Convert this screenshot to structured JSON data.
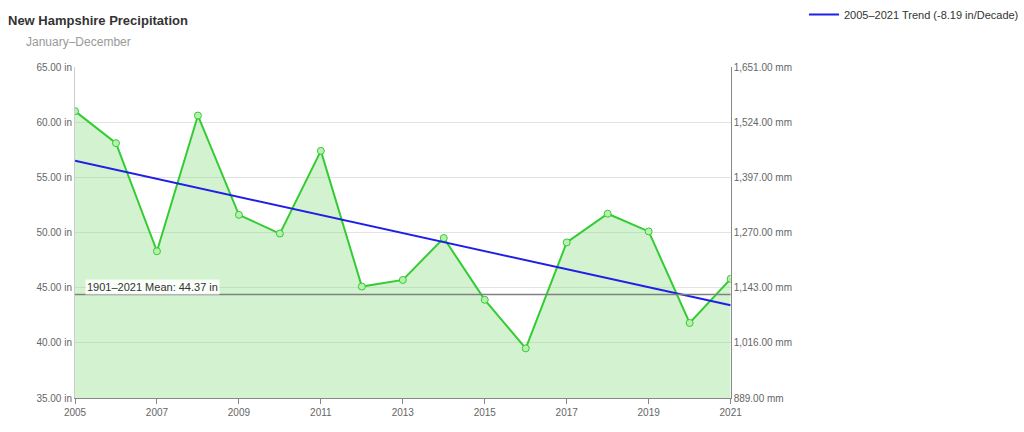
{
  "chart_data": {
    "type": "line",
    "title": "New Hampshire Precipitation",
    "subtitle": "January–December",
    "x": [
      2005,
      2006,
      2007,
      2008,
      2009,
      2010,
      2011,
      2012,
      2013,
      2014,
      2015,
      2016,
      2017,
      2018,
      2019,
      2020,
      2021
    ],
    "series": [
      {
        "type": "area",
        "color": "#33cc33",
        "marker": "circle",
        "values": [
          61.0,
          58.1,
          48.3,
          60.6,
          51.6,
          49.9,
          57.4,
          45.1,
          45.7,
          49.5,
          43.9,
          39.5,
          49.1,
          51.7,
          50.1,
          41.8,
          45.8
        ]
      },
      {
        "type": "line",
        "name": "2005–2021 Trend (-8.19 in/Decade)",
        "color": "#1f1fe6",
        "marker": "none",
        "x": [
          2005,
          2021
        ],
        "values": [
          56.5,
          43.4
        ]
      }
    ],
    "annotations": [
      {
        "text": "1901–2021 Mean: 44.37 in",
        "y": 44.37,
        "color": "#7f7f7f"
      }
    ],
    "xlim": [
      2005,
      2021
    ],
    "xticks": [
      2005,
      2007,
      2009,
      2011,
      2013,
      2015,
      2017,
      2019,
      2021
    ],
    "ylim": [
      35,
      65
    ],
    "yticks": [
      {
        "value": 35,
        "label": "35.00 in"
      },
      {
        "value": 40,
        "label": "40.00 in"
      },
      {
        "value": 45,
        "label": "45.00 in"
      },
      {
        "value": 50,
        "label": "50.00 in"
      },
      {
        "value": 55,
        "label": "55.00 in"
      },
      {
        "value": 60,
        "label": "60.00 in"
      },
      {
        "value": 65,
        "label": "65.00 in"
      }
    ],
    "y2lim": [
      889,
      1651
    ],
    "y2ticks": [
      {
        "value": 889,
        "label": "889.00 mm"
      },
      {
        "value": 1016,
        "label": "1,016.00 mm"
      },
      {
        "value": 1143,
        "label": "1,143.00 mm"
      },
      {
        "value": 1270,
        "label": "1,270.00 mm"
      },
      {
        "value": 1397,
        "label": "1,397.00 mm"
      },
      {
        "value": 1524,
        "label": "1,524.00 mm"
      },
      {
        "value": 1651,
        "label": "1,651.00 mm"
      }
    ],
    "grid": true,
    "legend": "top right"
  }
}
